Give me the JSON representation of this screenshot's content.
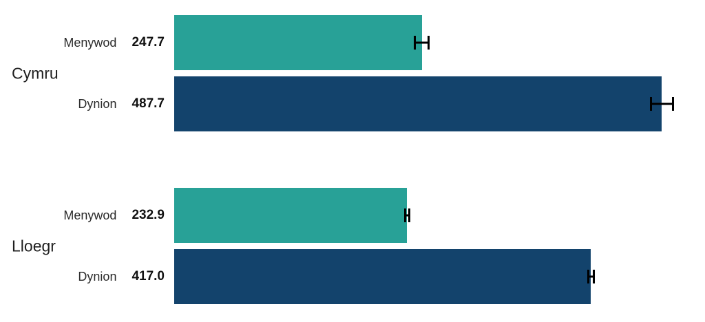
{
  "chart_data": {
    "type": "bar",
    "orientation": "horizontal",
    "title": "",
    "xlabel": "",
    "ylabel": "",
    "xlim": [
      0,
      531
    ],
    "grid": false,
    "axes_visible": false,
    "legend": "none",
    "colors": {
      "Menywod": "#28A197",
      "Dynion": "#13436C"
    },
    "error_bar_color": "#000000",
    "groups": [
      {
        "label": "Cymru",
        "bars": [
          {
            "category": "Menywod",
            "value": 247.7,
            "value_label": "247.7",
            "error_plus_minus": 8
          },
          {
            "category": "Dynion",
            "value": 487.7,
            "value_label": "487.7",
            "error_plus_minus": 12
          }
        ]
      },
      {
        "label": "Lloegr",
        "bars": [
          {
            "category": "Menywod",
            "value": 232.9,
            "value_label": "232.9",
            "error_plus_minus": 3
          },
          {
            "category": "Dynion",
            "value": 417.0,
            "value_label": "417.0",
            "error_plus_minus": 4
          }
        ]
      }
    ]
  }
}
